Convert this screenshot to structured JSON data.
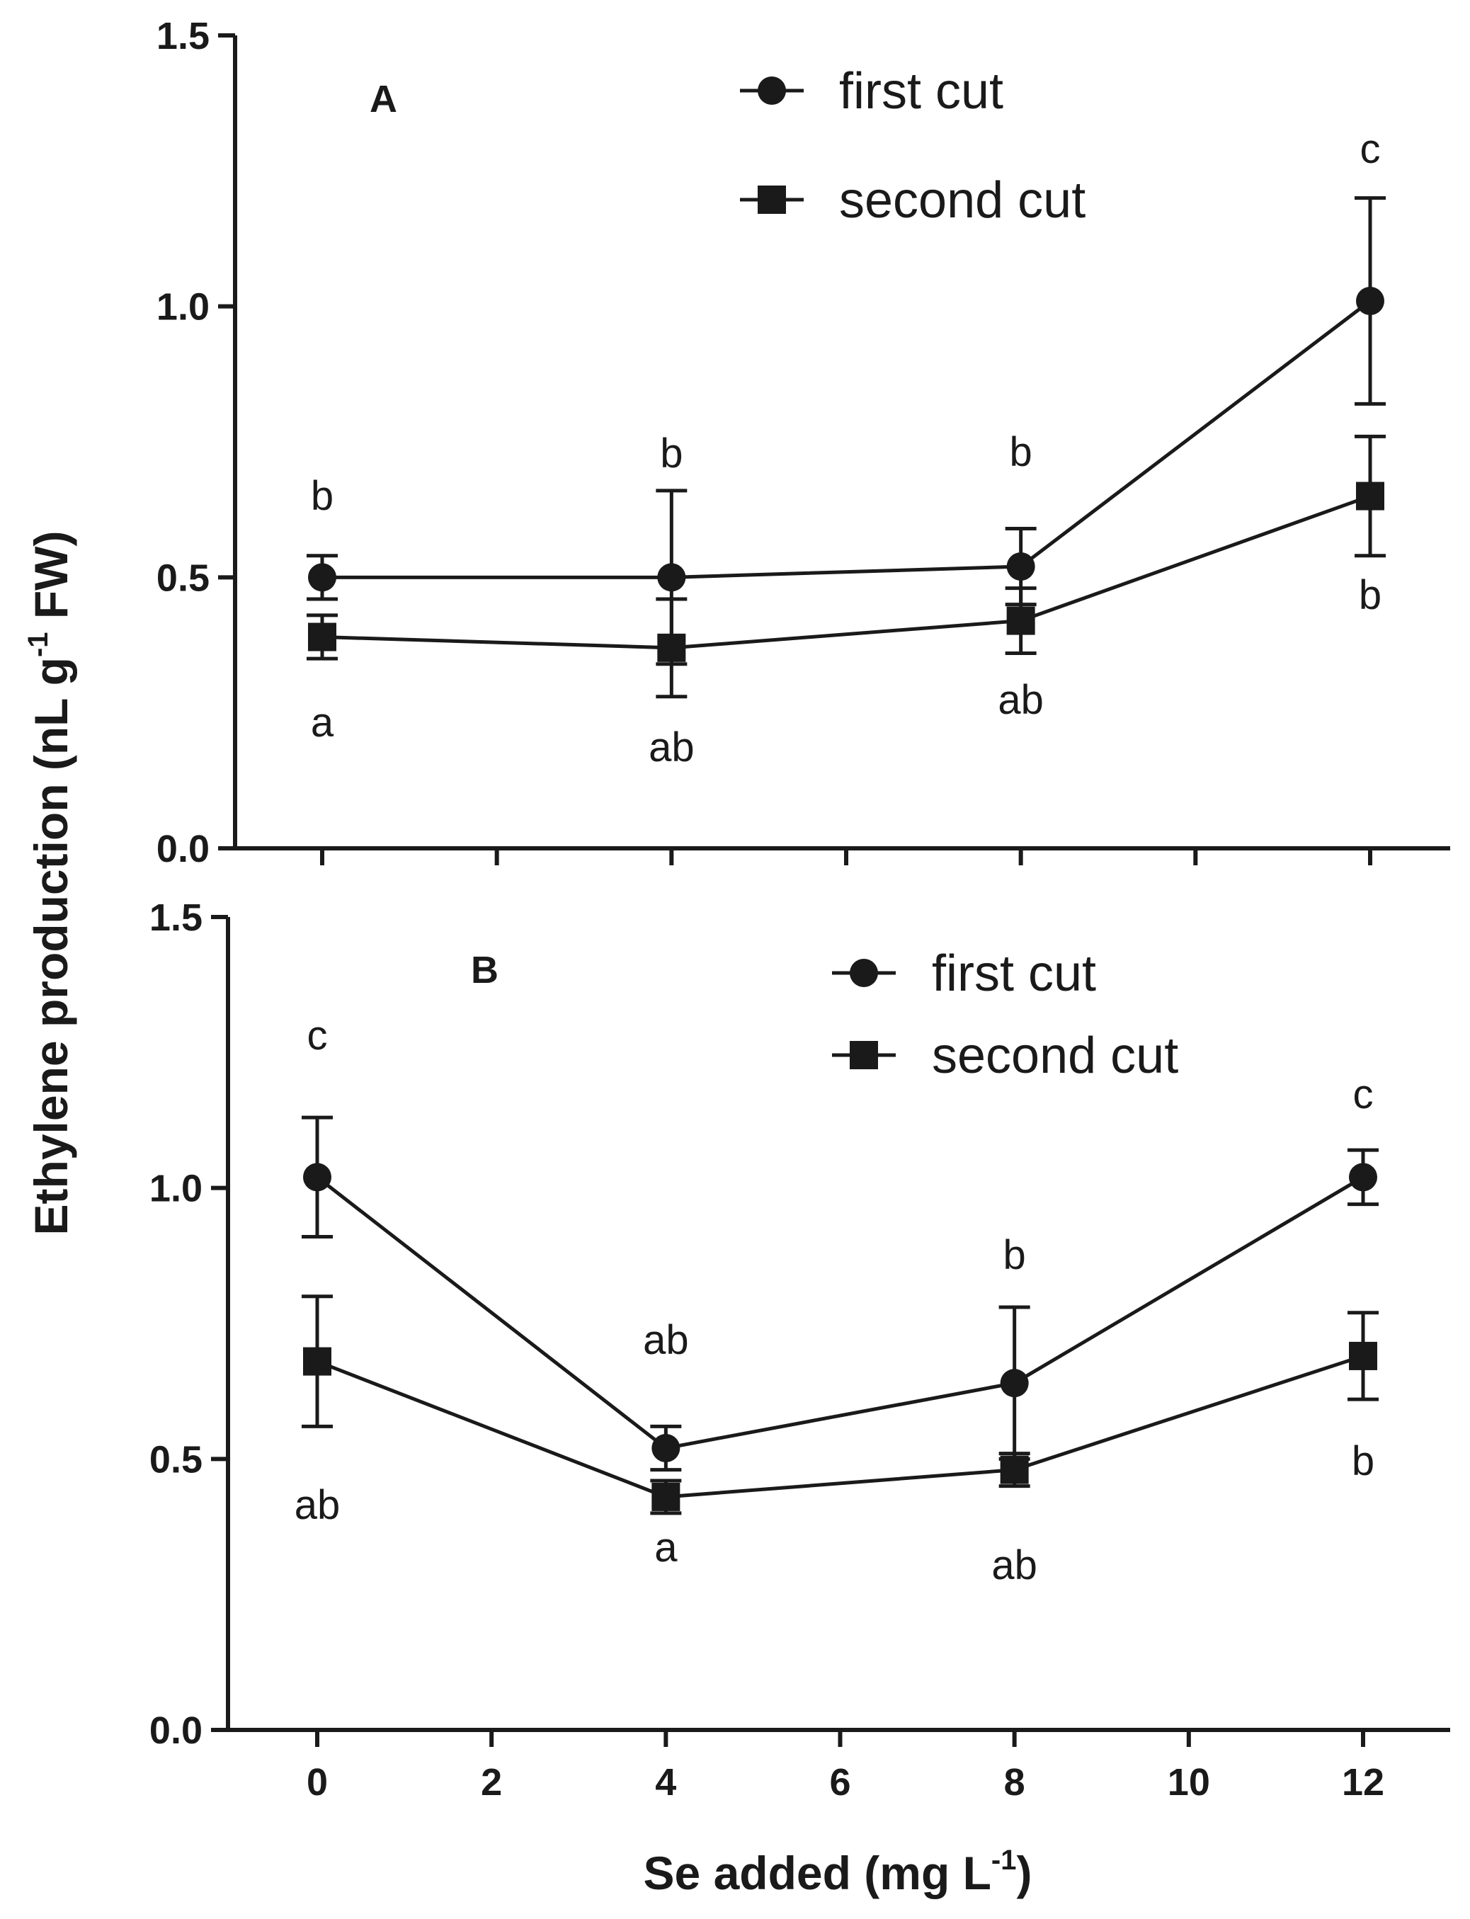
{
  "chart_data": [
    {
      "type": "line",
      "panel_label": "A",
      "ylabel": "Ethylene production (nL g-1 FW)",
      "ylim": [
        0,
        1.5
      ],
      "yticks": [
        "0.0",
        "0.5",
        "1.0",
        "1.5"
      ],
      "xlim": [
        -1,
        13
      ],
      "x": [
        0,
        4,
        8,
        12
      ],
      "legend": {
        "position": "top-center",
        "entries": [
          "first cut",
          "second cut"
        ]
      },
      "series": [
        {
          "name": "first cut",
          "marker": "circle",
          "values": [
            0.5,
            0.5,
            0.52,
            1.01
          ],
          "error": [
            0.04,
            0.16,
            0.07,
            0.19
          ],
          "letters": [
            "b",
            "b",
            "b",
            "c"
          ]
        },
        {
          "name": "second cut",
          "marker": "square",
          "values": [
            0.39,
            0.37,
            0.42,
            0.65
          ],
          "error": [
            0.04,
            0.09,
            0.06,
            0.11
          ],
          "letters": [
            "a",
            "ab",
            "ab",
            "b"
          ]
        }
      ]
    },
    {
      "type": "line",
      "panel_label": "B",
      "ylabel": "Ethylene production (nL g-1 FW)",
      "xlabel": "Se added (mg L-1)",
      "ylim": [
        0,
        1.5
      ],
      "yticks": [
        "0.0",
        "0.5",
        "1.0",
        "1.5"
      ],
      "xlim": [
        -1,
        13
      ],
      "x": [
        0,
        4,
        8,
        12
      ],
      "xticks": [
        "0",
        "2",
        "4",
        "6",
        "8",
        "10",
        "12"
      ],
      "legend": {
        "position": "top-center",
        "entries": [
          "first cut",
          "second cut"
        ]
      },
      "series": [
        {
          "name": "first cut",
          "marker": "circle",
          "values": [
            1.02,
            0.52,
            0.64,
            1.02
          ],
          "error": [
            0.11,
            0.04,
            0.14,
            0.05
          ],
          "letters": [
            "c",
            "ab",
            "b",
            "c"
          ]
        },
        {
          "name": "second cut",
          "marker": "square",
          "values": [
            0.68,
            0.43,
            0.48,
            0.69
          ],
          "error": [
            0.12,
            0.03,
            0.03,
            0.08
          ],
          "letters": [
            "ab",
            "a",
            "ab",
            "b"
          ]
        }
      ]
    }
  ],
  "axis_text": {
    "ylabel_main": "Ethylene production (nL g",
    "ylabel_sup": "-1",
    "ylabel_tail": " FW)",
    "xlabel_main": "Se added (mg L",
    "xlabel_sup": "-1",
    "xlabel_tail": ")"
  }
}
